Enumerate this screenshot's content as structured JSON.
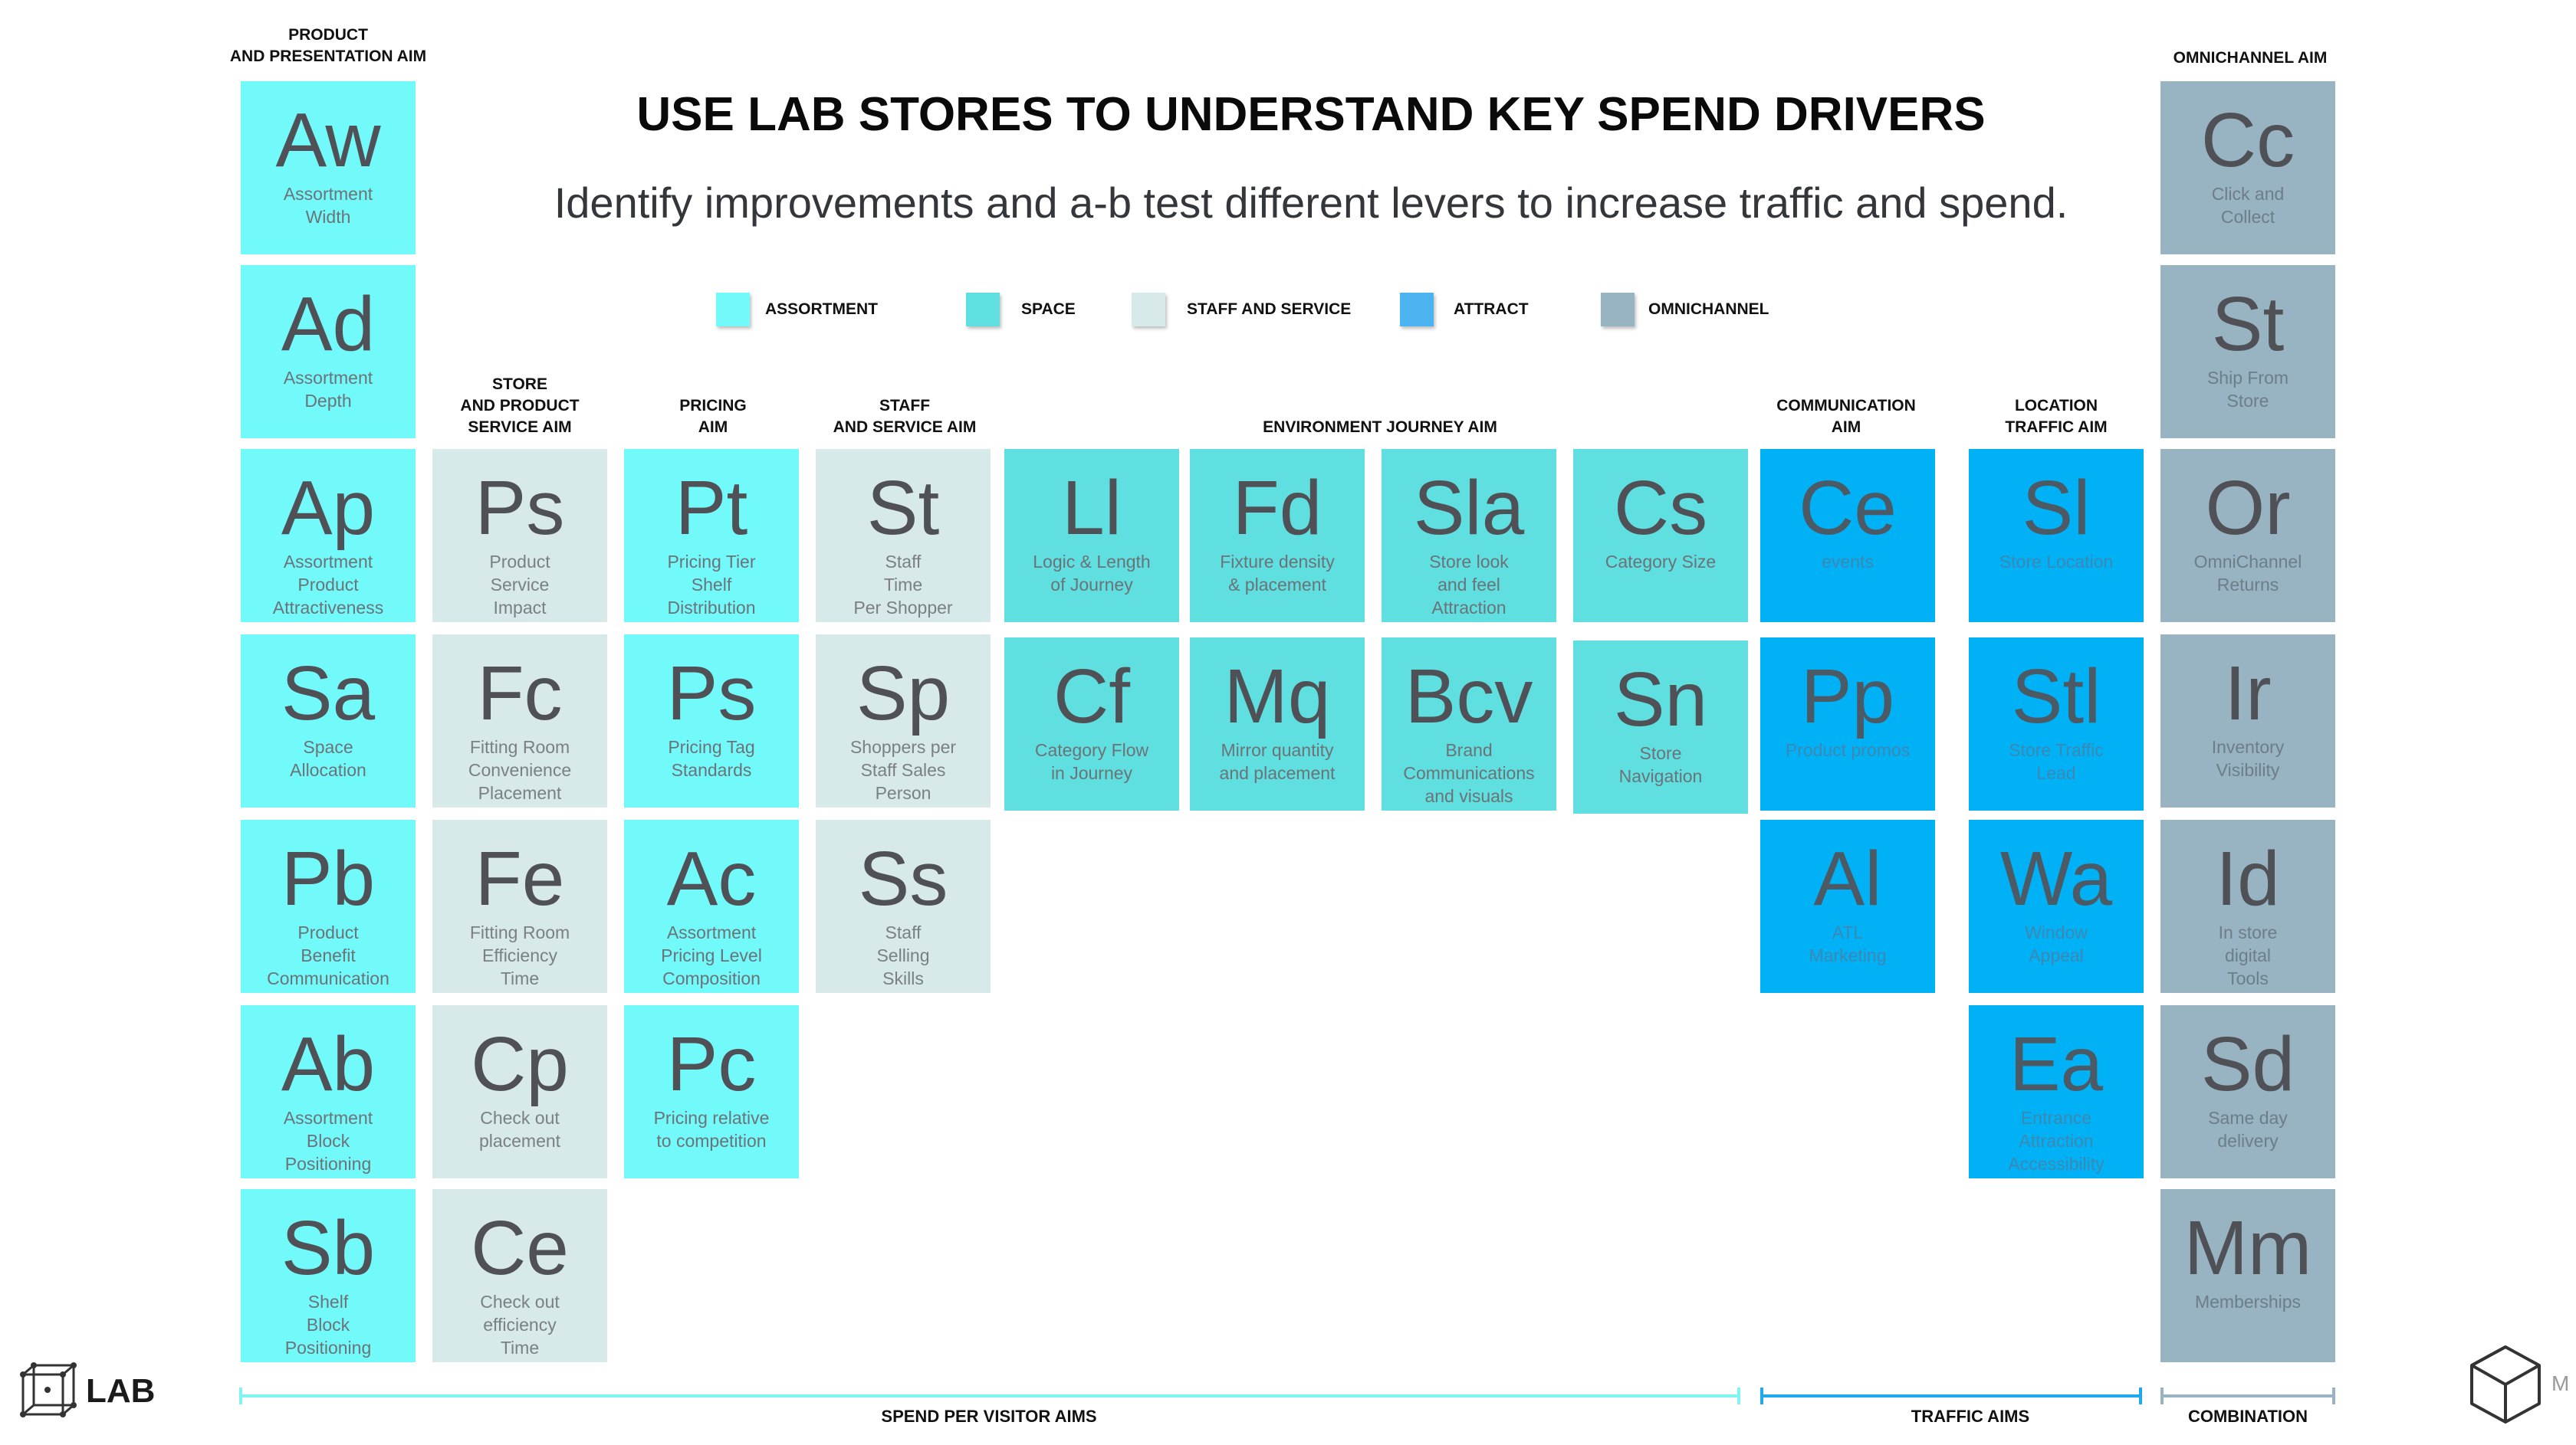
{
  "title": "USE LAB STORES TO UNDERSTAND KEY SPEND DRIVERS",
  "subtitle": "Identify improvements and a-b test different levers to increase traffic and spend.",
  "legend": [
    {
      "label": "ASSORTMENT",
      "color": "#72fafb"
    },
    {
      "label": "SPACE",
      "color": "#5fdfdf"
    },
    {
      "label": "STAFF AND SERVICE",
      "color": "#d7e9e8"
    },
    {
      "label": "ATTRACT",
      "color": "#4ab3f0"
    },
    {
      "label": "OMNICHANNEL",
      "color": "#98b3c1"
    }
  ],
  "aims": {
    "product": "PRODUCT\nAND PRESENTATION AIM",
    "store_product": "STORE\nAND PRODUCT\nSERVICE AIM",
    "pricing": "PRICING\nAIM",
    "staff": "STAFF\nAND SERVICE AIM",
    "environment": "ENVIRONMENT JOURNEY AIM",
    "communication": "COMMUNICATION\nAIM",
    "location": "LOCATION\nTRAFFIC AIM",
    "omnichannel": "OMNICHANNEL AIM"
  },
  "columns": {
    "product": [
      {
        "sym": "Aw",
        "name": "Assortment\nWidth"
      },
      {
        "sym": "Ad",
        "name": "Assortment\nDepth"
      },
      {
        "sym": "Ap",
        "name": "Assortment\nProduct\nAttractiveness"
      },
      {
        "sym": "Sa",
        "name": "Space\nAllocation"
      },
      {
        "sym": "Pb",
        "name": "Product\nBenefit\nCommunication"
      },
      {
        "sym": "Ab",
        "name": "Assortment\nBlock\nPositioning"
      },
      {
        "sym": "Sb",
        "name": "Shelf\nBlock\nPositioning"
      }
    ],
    "store_product": [
      {
        "sym": "Ps",
        "name": "Product\nService\nImpact"
      },
      {
        "sym": "Fc",
        "name": "Fitting Room\nConvenience\nPlacement"
      },
      {
        "sym": "Fe",
        "name": "Fitting Room\nEfficiency\nTime"
      },
      {
        "sym": "Cp",
        "name": "Check out\nplacement"
      },
      {
        "sym": "Ce",
        "name": "Check out\nefficiency\nTime"
      }
    ],
    "pricing": [
      {
        "sym": "Pt",
        "name": "Pricing Tier\nShelf\nDistribution"
      },
      {
        "sym": "Ps",
        "name": "Pricing Tag\nStandards"
      },
      {
        "sym": "Ac",
        "name": "Assortment\nPricing Level\nComposition"
      },
      {
        "sym": "Pc",
        "name": "Pricing relative\nto competition"
      }
    ],
    "staff": [
      {
        "sym": "St",
        "name": "Staff\nTime\nPer Shopper"
      },
      {
        "sym": "Sp",
        "name": "Shoppers per\nStaff Sales\nPerson"
      },
      {
        "sym": "Ss",
        "name": "Staff\nSelling\nSkills"
      }
    ],
    "env1": [
      {
        "sym": "Ll",
        "name": "Logic & Length\nof Journey"
      },
      {
        "sym": "Cf",
        "name": "Category Flow\nin Journey"
      }
    ],
    "env2": [
      {
        "sym": "Fd",
        "name": "Fixture density\n& placement"
      },
      {
        "sym": "Mq",
        "name": "Mirror quantity\nand placement"
      }
    ],
    "env3": [
      {
        "sym": "Sla",
        "name": "Store look\nand feel\nAttraction"
      },
      {
        "sym": "Bcv",
        "name": "Brand\nCommunications\nand visuals"
      }
    ],
    "env4": [
      {
        "sym": "Cs",
        "name": "Category Size"
      },
      {
        "sym": "Sn",
        "name": "Store\nNavigation"
      }
    ],
    "communication": [
      {
        "sym": "Ce",
        "name": "events"
      },
      {
        "sym": "Pp",
        "name": "Product promos"
      },
      {
        "sym": "Al",
        "name": "ATL\nMarketing"
      }
    ],
    "location": [
      {
        "sym": "Sl",
        "name": "Store Location"
      },
      {
        "sym": "Stl",
        "name": "Store Traffic\nLead"
      },
      {
        "sym": "Wa",
        "name": "Window\nAppeal"
      },
      {
        "sym": "Ea",
        "name": "Entrance\nAttraction\nAccessibility"
      }
    ],
    "omnichannel": [
      {
        "sym": "Cc",
        "name": "Click and\nCollect"
      },
      {
        "sym": "St",
        "name": "Ship From\nStore"
      },
      {
        "sym": "Or",
        "name": "OmniChannel\nReturns"
      },
      {
        "sym": "Ir",
        "name": "Inventory\nVisibility"
      },
      {
        "sym": "Id",
        "name": "In store\ndigital\nTools"
      },
      {
        "sym": "Sd",
        "name": "Same day\ndelivery"
      },
      {
        "sym": "Mm",
        "name": "Memberships"
      }
    ]
  },
  "axes": {
    "spend": "SPEND PER VISITOR AIMS",
    "traffic": "TRAFFIC AIMS",
    "combination": "COMBINATION"
  },
  "logo_text": "LAB"
}
